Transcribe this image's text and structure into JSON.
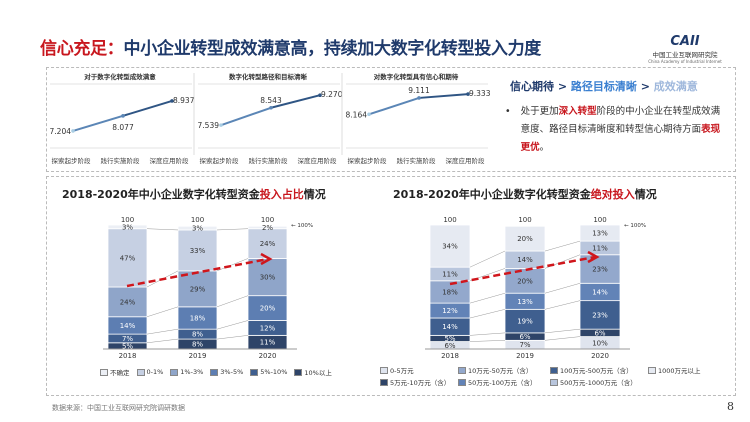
{
  "header": {
    "title_red": "信心充足：",
    "title_main": "中小企业转型成效满意高，持续加大数字化转型投入力度",
    "logo": {
      "mark": "CAII",
      "cn": "中国工业互联网研究院",
      "en": "China Academy of Industrial Internet"
    }
  },
  "line_panels": [
    {
      "title": "对于数字化转型成效满意",
      "x": [
        "探索起步阶段",
        "践行实施阶段",
        "深度应用阶段"
      ],
      "values": [
        7.204,
        8.077,
        8.937
      ],
      "labels": [
        "7.204",
        "8.077",
        "8.937"
      ]
    },
    {
      "title": "数字化转型路径和目标清晰",
      "x": [
        "探索起步阶段",
        "践行实施阶段",
        "深度应用阶段"
      ],
      "values": [
        7.539,
        8.543,
        9.27
      ],
      "labels": [
        "7.539",
        "8.543",
        "9.270"
      ]
    },
    {
      "title": "对数字化转型具有信心和期待",
      "x": [
        "探索起步阶段",
        "践行实施阶段",
        "深度应用阶段"
      ],
      "values": [
        8.164,
        9.111,
        9.333
      ],
      "labels": [
        "8.164",
        "9.111",
        "9.333"
      ]
    }
  ],
  "summary": {
    "h1": "信心期待",
    "sep": " > ",
    "h2": "路径目标清晰",
    "h3": "成效满意",
    "bullet": "•",
    "t1": "处于更加",
    "t2": "深入转型",
    "t3": "阶段的中小企业在转型成效满意度、路径目标清晰度和转型信心期待方面",
    "t4": "表现更优",
    "t5": "。"
  },
  "chart_data": [
    {
      "type": "bar",
      "stacked": true,
      "title_a": "2018-2020年中小企业数字化转型资金",
      "title_b": "投入占比",
      "title_c": "情况",
      "categories": [
        "2018",
        "2019",
        "2020"
      ],
      "totals": [
        "100",
        "100",
        "100"
      ],
      "total_marker": "100%",
      "series": [
        {
          "name": "10%以上",
          "values": [
            5,
            8,
            11
          ],
          "color": "#2e4468"
        },
        {
          "name": "5%-10%",
          "values": [
            7,
            8,
            12
          ],
          "color": "#3f5f8f"
        },
        {
          "name": "3%-5%",
          "values": [
            14,
            18,
            20
          ],
          "color": "#5d7eb2"
        },
        {
          "name": "1%-3%",
          "values": [
            24,
            29,
            30
          ],
          "color": "#8fa5c9"
        },
        {
          "name": "0-1%",
          "values": [
            47,
            33,
            24
          ],
          "color": "#c6d0e3"
        },
        {
          "name": "不确定",
          "values": [
            3,
            3,
            2
          ],
          "color": "#eceff5"
        }
      ],
      "legend_order": [
        "不确定",
        "0-1%",
        "1%-3%",
        "3%-5%",
        "5%-10%",
        "10%以上"
      ],
      "ylim": [
        0,
        100
      ]
    },
    {
      "type": "bar",
      "stacked": true,
      "title_a": "2018-2020年中小企业数字化转型资金",
      "title_b": "绝对投入",
      "title_c": "情况",
      "categories": [
        "2018",
        "2019",
        "2020"
      ],
      "totals": [
        "100",
        "100",
        "100"
      ],
      "total_marker": "100%",
      "series": [
        {
          "name": "0-5万元",
          "values": [
            6,
            7,
            10
          ],
          "color": "#dfe4ee"
        },
        {
          "name": "5万元-10万元（含）",
          "values": [
            5,
            6,
            6
          ],
          "color": "#2e4468"
        },
        {
          "name": "100万元-500万元（含）",
          "values": [
            14,
            19,
            23
          ],
          "color": "#3f5f8f"
        },
        {
          "name": "50万元-100万元（含）",
          "values": [
            12,
            13,
            14
          ],
          "color": "#6283b7"
        },
        {
          "name": "10万元-50万元（含）",
          "values": [
            18,
            20,
            23
          ],
          "color": "#93a8cc"
        },
        {
          "name": "500万元-1000万元（含）",
          "values": [
            11,
            14,
            11
          ],
          "color": "#b9c6dd"
        },
        {
          "name": "1000万元以上",
          "values": [
            34,
            20,
            13
          ],
          "color": "#e6eaf2"
        }
      ],
      "legend_order": [
        "0-5万元",
        "10万元-50万元（含）",
        "100万元-500万元（含）",
        "1000万元以上",
        "5万元-10万元（含）",
        "50万元-100万元（含）",
        "500万元-1000万元（含）"
      ],
      "ylim": [
        0,
        100
      ]
    }
  ],
  "footer": {
    "source": "数据来源：中国工业互联网研究院调研数据",
    "page": "8"
  }
}
